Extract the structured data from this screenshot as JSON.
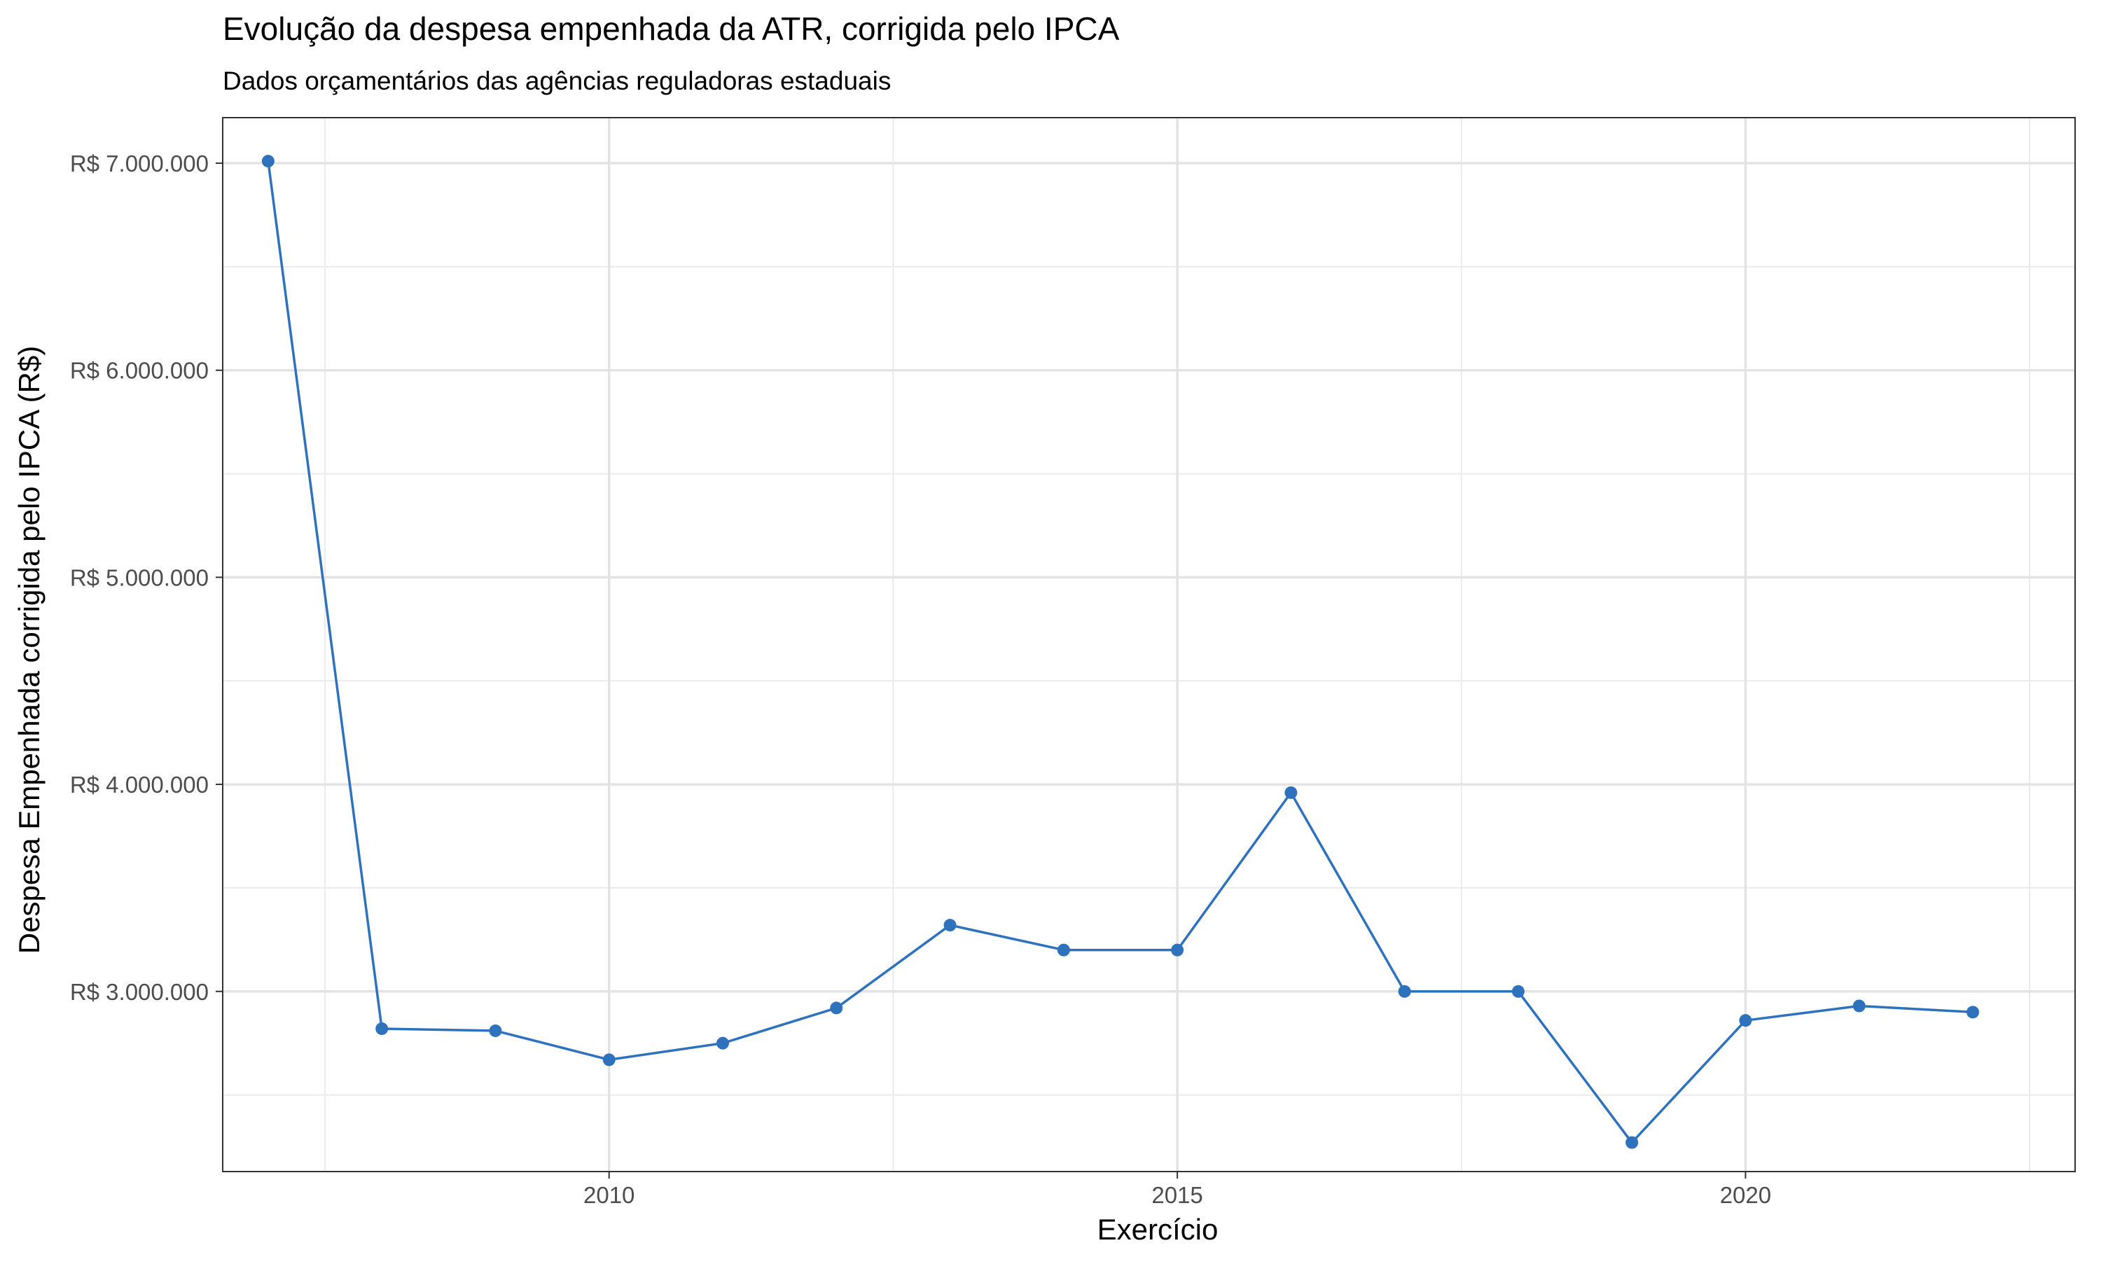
{
  "title": "Evolução da despesa empenhada da ATR, corrigida pelo IPCA",
  "subtitle": "Dados orçamentários das agências reguladoras estaduais",
  "chart_data": {
    "type": "line",
    "title": "Evolução da despesa empenhada da ATR, corrigida pelo IPCA",
    "subtitle": "Dados orçamentários das agências reguladoras estaduais",
    "xlabel": "Exercício",
    "ylabel": "Despesa Empenhada corrigida pelo IPCA (R$)",
    "xlim": [
      2006.6,
      2022.9
    ],
    "ylim": [
      2130000,
      7220000
    ],
    "x_ticks": [
      2010,
      2015,
      2020
    ],
    "x_tick_labels": [
      "2010",
      "2015",
      "2020"
    ],
    "y_ticks": [
      3000000,
      4000000,
      5000000,
      6000000,
      7000000
    ],
    "y_tick_labels": [
      "R$ 3.000.000",
      "R$ 4.000.000",
      "R$ 5.000.000",
      "R$ 6.000.000",
      "R$ 7.000.000"
    ],
    "x_minor_ticks": [
      2007.5,
      2012.5,
      2017.5,
      2022.5
    ],
    "y_minor_ticks": [
      2500000,
      3500000,
      4500000,
      5500000,
      6500000
    ],
    "grid": true,
    "legend": "none",
    "series": [
      {
        "color": "#2E72BE",
        "x": [
          2007,
          2008,
          2009,
          2010,
          2011,
          2012,
          2013,
          2014,
          2015,
          2016,
          2017,
          2018,
          2019,
          2020,
          2021,
          2022
        ],
        "values": [
          7010000,
          2820000,
          2810000,
          2670000,
          2750000,
          2920000,
          3320000,
          3200000,
          3200000,
          3960000,
          3000000,
          3000000,
          2270000,
          2860000,
          2930000,
          2900000
        ]
      }
    ]
  }
}
